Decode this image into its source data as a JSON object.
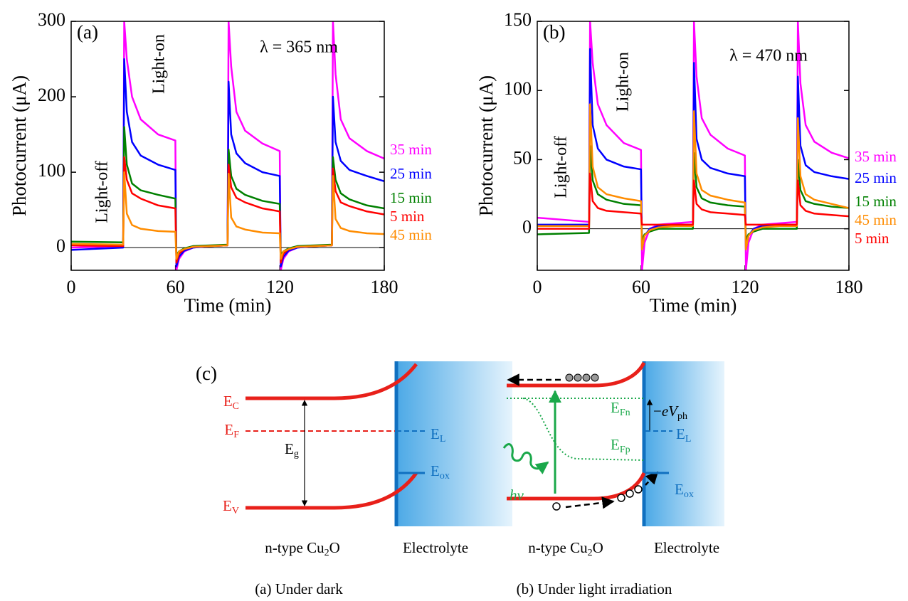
{
  "chart_data": [
    {
      "type": "line",
      "panel": "(a)",
      "annotation": "λ = 365 nm",
      "light_off": "Light-off",
      "light_on": "Light-on",
      "x_label": "Time (min)",
      "y_label": "Photocurrent (μA)",
      "xlim": [
        0,
        180
      ],
      "xticks": [
        0,
        60,
        120,
        180
      ],
      "ylim": [
        -30,
        300
      ],
      "yticks": [
        0,
        100,
        200,
        300
      ],
      "x": [
        0,
        29.9,
        30.5,
        32,
        35,
        40,
        50,
        59.9,
        60.5,
        62,
        65,
        70,
        80,
        89.9,
        90.5,
        92,
        95,
        100,
        110,
        119.9,
        120.5,
        122,
        125,
        130,
        140,
        149.9,
        150.5,
        152,
        155,
        160,
        170,
        180
      ],
      "series": [
        {
          "name": "35 min",
          "color": "#ff00ff",
          "values": [
            0,
            2,
            300,
            250,
            200,
            170,
            150,
            142,
            -30,
            -15,
            -5,
            0,
            2,
            3,
            300,
            240,
            180,
            155,
            138,
            128,
            -30,
            -15,
            -5,
            0,
            2,
            3,
            300,
            230,
            170,
            145,
            128,
            118
          ]
        },
        {
          "name": "25 min",
          "color": "#0000ff",
          "values": [
            -3,
            0,
            250,
            180,
            140,
            122,
            110,
            103,
            -25,
            -12,
            -4,
            0,
            2,
            3,
            220,
            150,
            125,
            112,
            100,
            95,
            -25,
            -12,
            -4,
            0,
            2,
            3,
            200,
            140,
            115,
            103,
            95,
            88
          ]
        },
        {
          "name": "15 min",
          "color": "#008000",
          "values": [
            8,
            7,
            160,
            110,
            85,
            76,
            70,
            65,
            -10,
            -5,
            -1,
            2,
            3,
            4,
            130,
            95,
            78,
            70,
            62,
            58,
            -10,
            -5,
            -1,
            2,
            3,
            4,
            120,
            90,
            72,
            64,
            56,
            52
          ]
        },
        {
          "name": "5 min",
          "color": "#ff0000",
          "values": [
            3,
            2,
            120,
            90,
            72,
            65,
            56,
            52,
            -20,
            -8,
            -2,
            1,
            2,
            3,
            110,
            80,
            66,
            60,
            52,
            48,
            -20,
            -8,
            -2,
            1,
            2,
            3,
            105,
            75,
            60,
            55,
            48,
            44
          ]
        },
        {
          "name": "45 min",
          "color": "#ff8c00",
          "values": [
            5,
            4,
            100,
            45,
            30,
            25,
            22,
            21,
            -15,
            -5,
            -2,
            1,
            2,
            3,
            98,
            40,
            28,
            24,
            20,
            19,
            -15,
            -5,
            -2,
            1,
            2,
            3,
            95,
            38,
            26,
            22,
            19,
            18
          ]
        }
      ]
    },
    {
      "type": "line",
      "panel": "(b)",
      "annotation": "λ = 470 nm",
      "light_off": "Light-off",
      "light_on": "Light-on",
      "x_label": "Time (min)",
      "y_label": "Photocurrent (μA)",
      "xlim": [
        0,
        180
      ],
      "xticks": [
        0,
        60,
        120,
        180
      ],
      "ylim": [
        -30,
        150
      ],
      "yticks": [
        0,
        50,
        100,
        150
      ],
      "x": [
        0,
        29.9,
        30.5,
        32,
        35,
        40,
        50,
        59.9,
        60.5,
        62,
        65,
        70,
        80,
        89.9,
        90.5,
        92,
        95,
        100,
        110,
        119.9,
        120.5,
        122,
        125,
        130,
        140,
        149.9,
        150.5,
        152,
        155,
        160,
        170,
        180
      ],
      "series": [
        {
          "name": "35 min",
          "color": "#ff00ff",
          "values": [
            8,
            5,
            150,
            120,
            90,
            75,
            62,
            57,
            -30,
            -10,
            0,
            3,
            4,
            5,
            150,
            110,
            80,
            68,
            58,
            53,
            -30,
            -10,
            0,
            3,
            4,
            5,
            150,
            105,
            75,
            63,
            55,
            51
          ]
        },
        {
          "name": "25 min",
          "color": "#0000ff",
          "values": [
            3,
            3,
            130,
            75,
            58,
            50,
            45,
            43,
            -15,
            -5,
            0,
            2,
            3,
            3,
            120,
            65,
            50,
            44,
            40,
            38,
            -15,
            -5,
            0,
            2,
            3,
            3,
            110,
            60,
            46,
            41,
            38,
            36
          ]
        },
        {
          "name": "15 min",
          "color": "#008000",
          "values": [
            -4,
            -3,
            60,
            35,
            25,
            21,
            18,
            17,
            -8,
            -4,
            -2,
            0,
            0,
            0,
            55,
            30,
            22,
            19,
            17,
            16,
            -8,
            -4,
            -2,
            0,
            0,
            0,
            50,
            28,
            20,
            18,
            16,
            15
          ]
        },
        {
          "name": "45 min",
          "color": "#ff8c00",
          "values": [
            2,
            2,
            90,
            45,
            30,
            25,
            22,
            20,
            -15,
            -5,
            -1,
            1,
            2,
            2,
            85,
            40,
            28,
            24,
            21,
            19,
            -15,
            -5,
            -1,
            1,
            2,
            2,
            80,
            38,
            25,
            21,
            18,
            15
          ]
        },
        {
          "name": "5 min",
          "color": "#ff0000",
          "values": [
            0,
            0,
            40,
            20,
            15,
            13,
            12,
            11,
            3,
            3,
            3,
            3,
            3,
            3,
            35,
            18,
            14,
            12,
            11,
            10,
            3,
            3,
            3,
            3,
            3,
            3,
            35,
            17,
            13,
            11,
            10,
            9
          ]
        }
      ]
    }
  ],
  "diagram": {
    "panel": "(c)",
    "dark": {
      "ec": {
        "base": "E",
        "sub": "C"
      },
      "ef": {
        "base": "E",
        "sub": "F"
      },
      "eg": {
        "base": "E",
        "sub": "g"
      },
      "ev": {
        "base": "E",
        "sub": "V"
      },
      "el": {
        "base": "E",
        "sub": "L"
      },
      "eox": {
        "base": "E",
        "sub": "ox"
      },
      "semiconductor": {
        "before": "n-type Cu",
        "sub": "2",
        "after": "O"
      },
      "electrolyte": "Electrolyte",
      "caption": "(a) Under dark"
    },
    "light": {
      "efn": {
        "base": "E",
        "sub": "Fn"
      },
      "efp": {
        "base": "E",
        "sub": "Fp"
      },
      "vph": {
        "minus": "−",
        "e": "e",
        "v": "V",
        "sub": "ph"
      },
      "el": {
        "base": "E",
        "sub": "L"
      },
      "eox": {
        "base": "E",
        "sub": "ox"
      },
      "hv": "hν",
      "semiconductor": {
        "before": "n-type Cu",
        "sub": "2",
        "after": "O"
      },
      "electrolyte": "Electrolyte",
      "caption": "(b) Under light irradiation"
    }
  }
}
